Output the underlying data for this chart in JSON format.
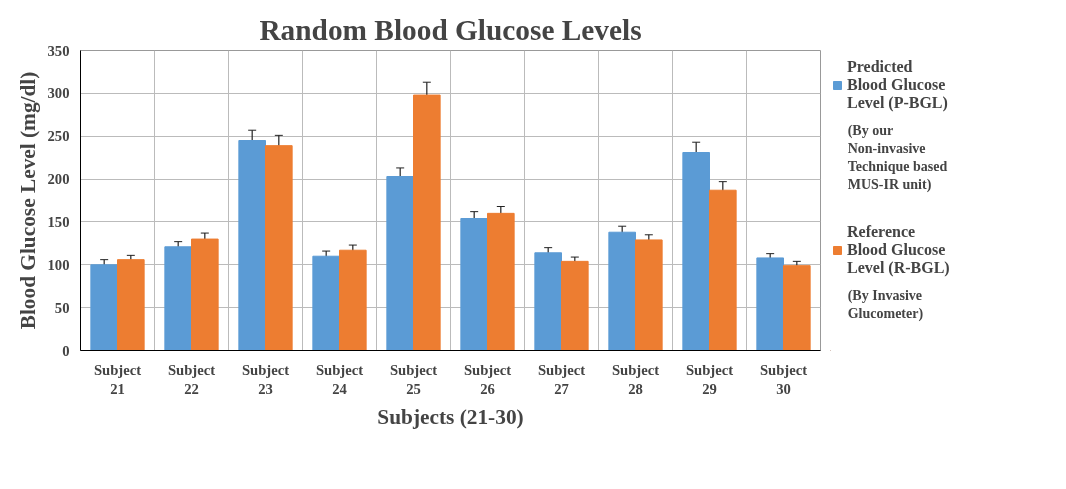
{
  "chart_data": {
    "type": "bar",
    "title": "Random Blood Glucose Levels",
    "xlabel": "Subjects (21-30)",
    "ylabel": "Blood Glucose Level (mg/dl)",
    "categories": [
      "Subject 21",
      "Subject 22",
      "Subject 23",
      "Subject 24",
      "Subject 25",
      "Subject 26",
      "Subject 27",
      "Subject 28",
      "Subject 29",
      "Subject 30"
    ],
    "series": [
      {
        "name": "Predicted Blood Glucose Level (P-BGL)",
        "color": "#5b9bd5",
        "values": [
          100,
          121,
          245,
          110,
          203,
          154,
          114,
          138,
          231,
          108
        ],
        "errors": [
          6,
          6,
          12,
          6,
          10,
          8,
          6,
          7,
          12,
          5
        ]
      },
      {
        "name": "Reference Blood Glucose Level (R-BGL)",
        "color": "#ed7d31",
        "values": [
          106,
          130,
          239,
          117,
          298,
          160,
          104,
          129,
          187,
          99
        ],
        "errors": [
          5,
          7,
          12,
          6,
          15,
          8,
          5,
          6,
          10,
          5
        ]
      }
    ],
    "annotations": [
      "(By our Non-invasive Technique based MUS-IR unit)",
      "(By Invasive Glucometer)"
    ],
    "ylim": [
      0,
      350
    ],
    "yticks": [
      0,
      50,
      100,
      150,
      200,
      250,
      300,
      350
    ],
    "grid": true,
    "legend": "right"
  }
}
